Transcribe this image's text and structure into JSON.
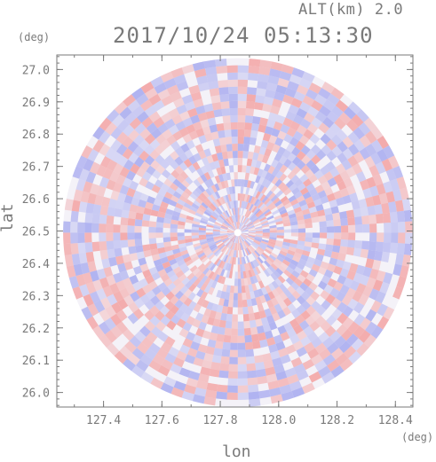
{
  "header": {
    "alt_label": "ALT(km) 2.0",
    "datetime": "2017/10/24 05:13:30"
  },
  "chart_data": {
    "type": "heatmap",
    "description_type": "radar PPI",
    "xlabel": "lon",
    "ylabel": "lat",
    "x_unit": "(deg)",
    "y_unit": "(deg)",
    "xlim": [
      127.24,
      128.46
    ],
    "ylim": [
      25.955,
      27.045
    ],
    "x_ticks": [
      "127.4",
      "127.6",
      "127.8",
      "128.0",
      "128.2",
      "128.4"
    ],
    "x_tick_values": [
      127.4,
      127.6,
      127.8,
      128.0,
      128.2,
      128.4
    ],
    "y_ticks": [
      "26.0",
      "26.1",
      "26.2",
      "26.3",
      "26.4",
      "26.5",
      "26.6",
      "26.7",
      "26.8",
      "26.9",
      "27.0"
    ],
    "y_tick_values": [
      26.0,
      26.1,
      26.2,
      26.3,
      26.4,
      26.5,
      26.6,
      26.7,
      26.8,
      26.9,
      27.0
    ],
    "center": {
      "lon": 127.86,
      "lat": 26.495
    },
    "radius_deg_lat": 0.54,
    "colors": {
      "positive": "#f3a3a3",
      "negative": "#a9acef",
      "neutral": "#ffffff",
      "axis": "#7a7a7a"
    }
  }
}
